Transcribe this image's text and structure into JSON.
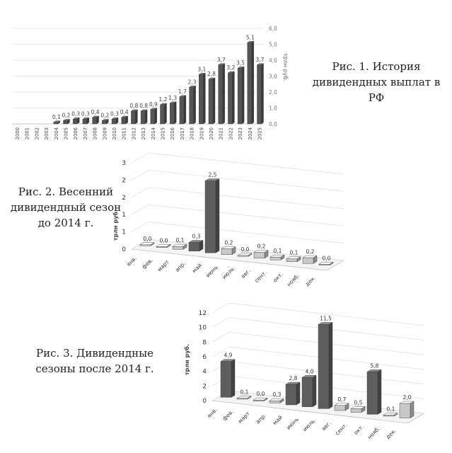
{
  "captions": {
    "fig1": "Рис. 1. История дивидендных выплат в РФ",
    "fig2": "Рис. 2. Весенний дивидендный сезон до 2014 г.",
    "fig3": "Рис. 3. Дивидендные сезоны после 2014 г."
  },
  "chart_data": [
    {
      "type": "bar",
      "style": "3d",
      "title": "",
      "xlabel": "",
      "ylabel": "трлн руб.",
      "y_axis_side": "right",
      "ylim": [
        0,
        6
      ],
      "yticks": [
        "0,0",
        "1,0",
        "2,0",
        "3,0",
        "4,0",
        "5,0",
        "6,0"
      ],
      "grid": true,
      "legend": "none",
      "categories": [
        "2000",
        "2001",
        "2002",
        "2003",
        "2004",
        "2005",
        "2006",
        "2007",
        "2008",
        "2009",
        "2010",
        "2011",
        "2012",
        "2013",
        "2014",
        "2015",
        "2016",
        "2017",
        "2018",
        "2019",
        "2020",
        "2021",
        "2022",
        "2023",
        "2024",
        "2025"
      ],
      "values": [
        0,
        0,
        0,
        0,
        0.1,
        0.2,
        0.3,
        0.3,
        0.4,
        0.2,
        0.3,
        0.4,
        0.8,
        0.8,
        0.9,
        1.2,
        1.3,
        1.7,
        2.3,
        3.1,
        2.8,
        3.7,
        3.2,
        3.5,
        5.1,
        3.7
      ],
      "data_labels": [
        "",
        "",
        "",
        "",
        "0,1",
        "0,2",
        "0,3",
        "0,3",
        "0,4",
        "0,2",
        "0,3",
        "0,4",
        "0,8",
        "0,8",
        "0,9",
        "1,2",
        "1,3",
        "1,7",
        "2,3",
        "3,1",
        "2,8",
        "3,7",
        "3,2",
        "3,5",
        "5,1",
        "3,7"
      ],
      "colors": {
        "bar": "#555555",
        "bar_top": "#8a8a8a"
      }
    },
    {
      "type": "bar",
      "style": "3d",
      "title": "",
      "xlabel": "",
      "ylabel": "трлн руб.",
      "y_axis_side": "left",
      "ylim": [
        0,
        3
      ],
      "yticks": [
        "0",
        "1",
        "1",
        "2",
        "2",
        "3"
      ],
      "grid": true,
      "legend": "none",
      "categories": [
        "янв.",
        "фев.",
        "март",
        "апр.",
        "май",
        "июнь",
        "июль",
        "авг.",
        "сент.",
        "окт.",
        "нояб.",
        "дек."
      ],
      "values": [
        0.0,
        0.0,
        0.1,
        0.3,
        2.5,
        0.2,
        0.0,
        0.2,
        0.1,
        0.1,
        0.2,
        0.0
      ],
      "data_labels": [
        "0,0",
        "0,0",
        "0,1",
        "0,3",
        "2,5",
        "0,2",
        "0,0",
        "0,2",
        "0,1",
        "0,1",
        "0,2",
        "0,0"
      ],
      "highlight": [
        false,
        false,
        false,
        true,
        true,
        false,
        false,
        false,
        false,
        false,
        false,
        false
      ],
      "colors": {
        "dark": "#5e5e5e",
        "light": "#c8c8c8"
      }
    },
    {
      "type": "bar",
      "style": "3d",
      "title": "",
      "xlabel": "",
      "ylabel": "трлн руб.",
      "y_axis_side": "left",
      "ylim": [
        0,
        12
      ],
      "yticks": [
        "0",
        "2",
        "4",
        "6",
        "8",
        "10",
        "12"
      ],
      "grid": true,
      "legend": "none",
      "categories": [
        "янв.",
        "фев.",
        "март",
        "апр.",
        "май",
        "июнь",
        "июль",
        "авг.",
        "сент.",
        "окт.",
        "нояб.",
        "дек."
      ],
      "values": [
        4.9,
        0.1,
        0.0,
        0.3,
        2.8,
        4.0,
        11.5,
        0.7,
        0.5,
        5.8,
        0.1,
        2.0
      ],
      "data_labels": [
        "4,9",
        "0,1",
        "0,0",
        "0,3",
        "2,8",
        "4,0",
        "11,5",
        "0,7",
        "0,5",
        "5,8",
        "0,1",
        "2,0"
      ],
      "highlight": [
        true,
        false,
        false,
        false,
        true,
        true,
        true,
        false,
        false,
        true,
        false,
        false
      ],
      "colors": {
        "dark": "#5e5e5e",
        "light": "#c8c8c8"
      }
    }
  ]
}
